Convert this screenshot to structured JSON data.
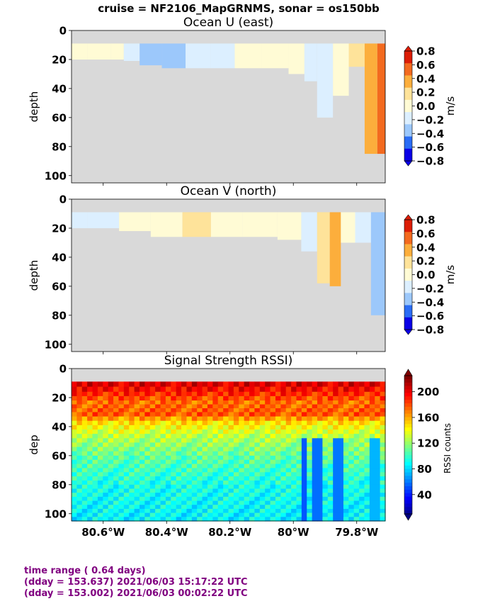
{
  "suptitle": "cruise = NF2106_MapGRNMS,  sonar = os150bb",
  "footer": {
    "line1": "time range ( 0.64 days)",
    "line2": "(dday = 153.637) 2021/06/03 15:17:22 UTC",
    "line3": "(dday = 153.002) 2021/06/03 00:02:22 UTC"
  },
  "colors": {
    "nodata": "#d9d9d9",
    "footer_text": "#800080"
  },
  "chart_data": [
    {
      "type": "heatmap",
      "title": "Ocean U (east)",
      "ylabel": "depth",
      "ylim": [
        105,
        0
      ],
      "yticks": [
        0,
        20,
        40,
        60,
        80,
        100
      ],
      "xlim": [
        -80.7,
        -79.71
      ],
      "xtick_labels_shown": false,
      "colorbar": {
        "label": "m/s",
        "ticks": [
          "0.8",
          "0.6",
          "0.4",
          "0.2",
          "0.0",
          "−0.2",
          "−0.4",
          "−0.6",
          "−0.8"
        ],
        "levels": [
          -0.8,
          -0.6,
          -0.4,
          -0.2,
          0.0,
          0.2,
          0.4,
          0.6,
          0.8
        ],
        "colors": [
          "#0a00e6",
          "#2a6cf5",
          "#9cc8fb",
          "#dcefff",
          "#fffbd5",
          "#fee39a",
          "#fcae3c",
          "#f36a1f",
          "#dc1d06"
        ],
        "extend": "both"
      },
      "data_top_depth": 9,
      "columns": [
        {
          "x": -80.7,
          "bottom": 20,
          "value": 0.05
        },
        {
          "x": -80.6,
          "bottom": 20,
          "value": 0.05
        },
        {
          "x": -80.55,
          "bottom": 20,
          "value": 0.05
        },
        {
          "x": -80.52,
          "bottom": 21,
          "value": -0.1
        },
        {
          "x": -80.45,
          "bottom": 24,
          "value": -0.3
        },
        {
          "x": -80.38,
          "bottom": 26,
          "value": -0.3
        },
        {
          "x": -80.3,
          "bottom": 26,
          "value": -0.1
        },
        {
          "x": -80.22,
          "bottom": 26,
          "value": -0.1
        },
        {
          "x": -80.15,
          "bottom": 26,
          "value": 0.05
        },
        {
          "x": -80.05,
          "bottom": 26,
          "value": 0.05
        },
        {
          "x": -79.98,
          "bottom": 30,
          "value": 0.0
        },
        {
          "x": -79.95,
          "bottom": 35,
          "value": -0.1
        },
        {
          "x": -79.9,
          "bottom": 60,
          "value": -0.1
        },
        {
          "x": -79.85,
          "bottom": 45,
          "value": 0.1
        },
        {
          "x": -79.8,
          "bottom": 25,
          "value": 0.3
        },
        {
          "x": -79.75,
          "bottom": 85,
          "value": 0.5
        },
        {
          "x": -79.72,
          "bottom": 85,
          "value": 0.7
        }
      ]
    },
    {
      "type": "heatmap",
      "title": "Ocean V (north)",
      "ylabel": "depth",
      "ylim": [
        105,
        0
      ],
      "yticks": [
        0,
        20,
        40,
        60,
        80,
        100
      ],
      "xlim": [
        -80.7,
        -79.71
      ],
      "xtick_labels_shown": false,
      "colorbar": {
        "label": "m/s",
        "ticks": [
          "0.8",
          "0.6",
          "0.4",
          "0.2",
          "0.0",
          "−0.2",
          "−0.4",
          "−0.6",
          "−0.8"
        ],
        "levels": [
          -0.8,
          -0.6,
          -0.4,
          -0.2,
          0.0,
          0.2,
          0.4,
          0.6,
          0.8
        ],
        "colors": [
          "#0a00e6",
          "#2a6cf5",
          "#9cc8fb",
          "#dcefff",
          "#fffbd5",
          "#fee39a",
          "#fcae3c",
          "#f36a1f",
          "#dc1d06"
        ],
        "extend": "both"
      },
      "data_top_depth": 9,
      "columns": [
        {
          "x": -80.7,
          "bottom": 20,
          "value": -0.1
        },
        {
          "x": -80.6,
          "bottom": 20,
          "value": -0.1
        },
        {
          "x": -80.5,
          "bottom": 22,
          "value": 0.05
        },
        {
          "x": -80.4,
          "bottom": 26,
          "value": 0.05
        },
        {
          "x": -80.3,
          "bottom": 26,
          "value": 0.3
        },
        {
          "x": -80.22,
          "bottom": 26,
          "value": 0.05
        },
        {
          "x": -80.1,
          "bottom": 26,
          "value": 0.05
        },
        {
          "x": -80.0,
          "bottom": 28,
          "value": 0.0
        },
        {
          "x": -79.95,
          "bottom": 36,
          "value": -0.1
        },
        {
          "x": -79.9,
          "bottom": 58,
          "value": 0.2
        },
        {
          "x": -79.87,
          "bottom": 60,
          "value": 0.5
        },
        {
          "x": -79.83,
          "bottom": 30,
          "value": 0.1
        },
        {
          "x": -79.78,
          "bottom": 30,
          "value": -0.1
        },
        {
          "x": -79.73,
          "bottom": 80,
          "value": -0.3
        }
      ]
    },
    {
      "type": "heatmap",
      "title": "Signal Strength RSSI)",
      "ylabel": "dep",
      "ylim": [
        105,
        0
      ],
      "yticks": [
        0,
        20,
        40,
        60,
        80,
        100
      ],
      "xlim": [
        -80.7,
        -79.71
      ],
      "xticks": [
        -80.6,
        -80.4,
        -80.2,
        -80.0,
        -79.8
      ],
      "xtick_labels": [
        "80.6°W",
        "80.4°W",
        "80.2°W",
        "80°W",
        "79.8°W"
      ],
      "colorbar": {
        "label": "RSSI counts",
        "ticks": [
          "200",
          "160",
          "120",
          "80",
          "40"
        ],
        "tick_values": [
          200,
          160,
          120,
          80,
          40
        ],
        "range": [
          10,
          225
        ],
        "colormap": "jet",
        "extend": "both"
      },
      "data_top_depth": 9,
      "depth_profile": [
        {
          "depth": 9,
          "value": 205
        },
        {
          "depth": 16,
          "value": 190
        },
        {
          "depth": 22,
          "value": 175
        },
        {
          "depth": 30,
          "value": 180
        },
        {
          "depth": 36,
          "value": 150
        },
        {
          "depth": 45,
          "value": 130
        },
        {
          "depth": 60,
          "value": 110
        },
        {
          "depth": 80,
          "value": 95
        },
        {
          "depth": 105,
          "value": 88
        }
      ],
      "low_signal_columns": [
        {
          "x": -79.97,
          "value": 55
        },
        {
          "x": -79.93,
          "value": 60
        },
        {
          "x": -79.87,
          "value": 62
        },
        {
          "x": -79.75,
          "value": 75
        }
      ]
    }
  ]
}
